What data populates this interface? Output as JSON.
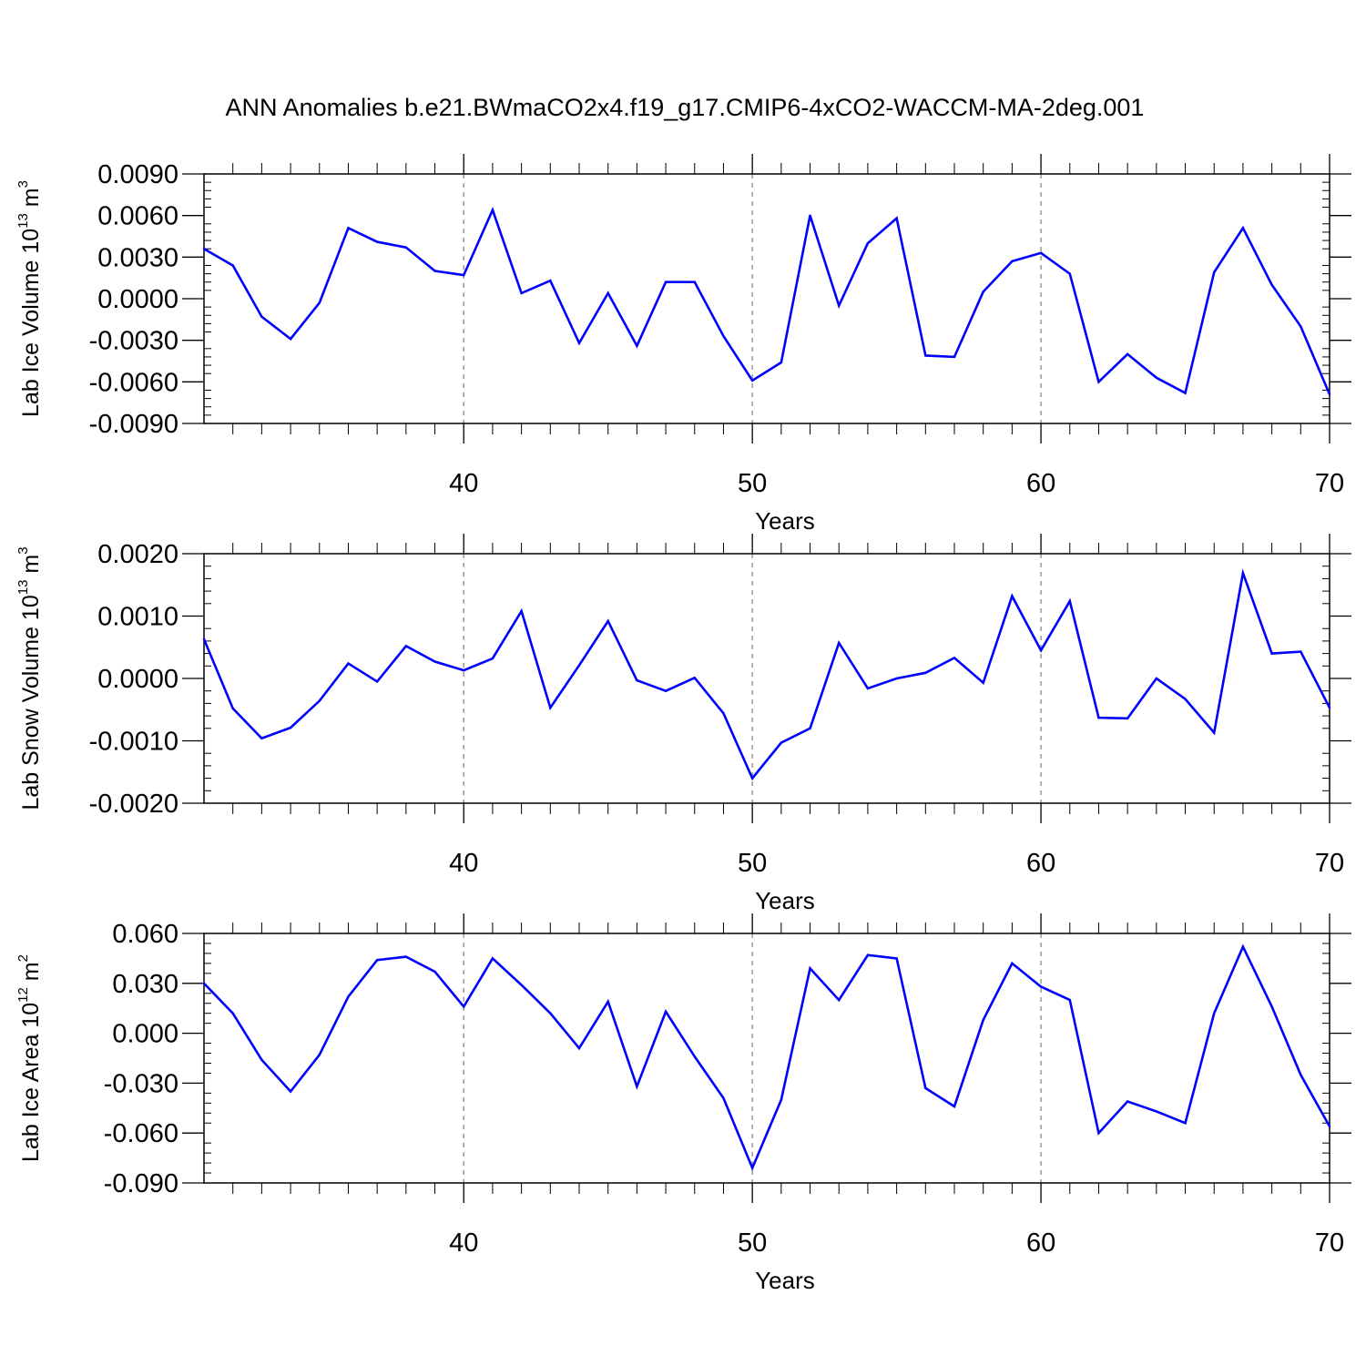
{
  "figure": {
    "title": "ANN Anomalies b.e21.BWmaCO2x4.f19_g17.CMIP6-4xCO2-WACCM-MA-2deg.001",
    "line_color": "#0000ff",
    "grid_color": "#999999"
  },
  "chart_data": [
    {
      "type": "line",
      "title": "",
      "xlabel": "Years",
      "ylabel": {
        "text": "Lab Ice Volume 10",
        "exp": "13",
        "unit": " m",
        "unit_exp": "3"
      },
      "xlim": [
        31,
        70
      ],
      "ylim": [
        -0.009,
        0.009
      ],
      "xticks": [
        40,
        50,
        60,
        70
      ],
      "yticks": [
        "0.0090",
        "0.0060",
        "0.0030",
        "0.0000",
        "-0.0030",
        "-0.0060",
        "-0.0090"
      ],
      "ytick_values": [
        0.009,
        0.006,
        0.003,
        0.0,
        -0.003,
        -0.006,
        -0.009
      ],
      "grid_x": [
        40,
        50,
        60
      ],
      "x": [
        31,
        32,
        33,
        34,
        35,
        36,
        37,
        38,
        39,
        40,
        41,
        42,
        43,
        44,
        45,
        46,
        47,
        48,
        49,
        50,
        51,
        52,
        53,
        54,
        55,
        56,
        57,
        58,
        59,
        60,
        61,
        62,
        63,
        64,
        65,
        66,
        67,
        68,
        69,
        70
      ],
      "series": [
        {
          "name": "Lab Ice Volume",
          "values": [
            0.0036,
            0.0024,
            -0.0013,
            -0.0029,
            -0.0003,
            0.0051,
            0.0041,
            0.0037,
            0.002,
            0.0017,
            0.0064,
            0.0004,
            0.0013,
            -0.0032,
            0.0004,
            -0.0034,
            0.0012,
            0.0012,
            -0.0027,
            -0.0059,
            -0.0046,
            0.006,
            -0.0005,
            0.004,
            0.0058,
            -0.0041,
            -0.0042,
            0.0005,
            0.0027,
            0.0033,
            0.0018,
            -0.006,
            -0.004,
            -0.0057,
            -0.0068,
            0.0019,
            0.0051,
            0.001,
            -0.002,
            -0.0069
          ]
        }
      ]
    },
    {
      "type": "line",
      "title": "",
      "xlabel": "Years",
      "ylabel": {
        "text": "Lab Snow Volume 10",
        "exp": "13",
        "unit": " m",
        "unit_exp": "3"
      },
      "xlim": [
        31,
        70
      ],
      "ylim": [
        -0.002,
        0.002
      ],
      "xticks": [
        40,
        50,
        60,
        70
      ],
      "yticks": [
        "0.0020",
        "0.0010",
        "0.0000",
        "-0.0010",
        "-0.0020"
      ],
      "ytick_values": [
        0.002,
        0.001,
        0.0,
        -0.001,
        -0.002
      ],
      "grid_x": [
        40,
        50,
        60
      ],
      "x": [
        31,
        32,
        33,
        34,
        35,
        36,
        37,
        38,
        39,
        40,
        41,
        42,
        43,
        44,
        45,
        46,
        47,
        48,
        49,
        50,
        51,
        52,
        53,
        54,
        55,
        56,
        57,
        58,
        59,
        60,
        61,
        62,
        63,
        64,
        65,
        66,
        67,
        68,
        69,
        70
      ],
      "series": [
        {
          "name": "Lab Snow Volume",
          "values": [
            0.00063,
            -0.00048,
            -0.00096,
            -0.00079,
            -0.00036,
            0.00024,
            -5e-05,
            0.00052,
            0.00027,
            0.00013,
            0.00032,
            0.00108,
            -0.00047,
            0.00021,
            0.00092,
            -3e-05,
            -0.0002,
            1e-05,
            -0.00056,
            -0.0016,
            -0.00103,
            -0.0008,
            0.00057,
            -0.00016,
            0.0,
            9e-05,
            0.00033,
            -7e-05,
            0.00132,
            0.00045,
            0.00124,
            -0.00063,
            -0.00064,
            0.0,
            -0.00033,
            -0.00087,
            0.00169,
            0.0004,
            0.00043,
            -0.00047
          ]
        }
      ]
    },
    {
      "type": "line",
      "title": "",
      "xlabel": "Years",
      "ylabel": {
        "text": "Lab Ice Area 10",
        "exp": "12",
        "unit": " m",
        "unit_exp": "2"
      },
      "xlim": [
        31,
        70
      ],
      "ylim": [
        -0.09,
        0.06
      ],
      "xticks": [
        40,
        50,
        60,
        70
      ],
      "yticks": [
        "0.060",
        "0.030",
        "0.000",
        "-0.030",
        "-0.060",
        "-0.090"
      ],
      "ytick_values": [
        0.06,
        0.03,
        0.0,
        -0.03,
        -0.06,
        -0.09
      ],
      "grid_x": [
        40,
        50,
        60
      ],
      "x": [
        31,
        32,
        33,
        34,
        35,
        36,
        37,
        38,
        39,
        40,
        41,
        42,
        43,
        44,
        45,
        46,
        47,
        48,
        49,
        50,
        51,
        52,
        53,
        54,
        55,
        56,
        57,
        58,
        59,
        60,
        61,
        62,
        63,
        64,
        65,
        66,
        67,
        68,
        69,
        70
      ],
      "series": [
        {
          "name": "Lab Ice Area",
          "values": [
            0.03,
            0.012,
            -0.016,
            -0.035,
            -0.013,
            0.022,
            0.044,
            0.046,
            0.037,
            0.016,
            0.045,
            0.029,
            0.012,
            -0.009,
            0.019,
            -0.032,
            0.013,
            -0.014,
            -0.039,
            -0.081,
            -0.04,
            0.039,
            0.02,
            0.047,
            0.045,
            -0.033,
            -0.044,
            0.008,
            0.042,
            0.028,
            0.02,
            -0.06,
            -0.041,
            -0.047,
            -0.054,
            0.012,
            0.052,
            0.016,
            -0.025,
            -0.056
          ]
        }
      ]
    }
  ]
}
